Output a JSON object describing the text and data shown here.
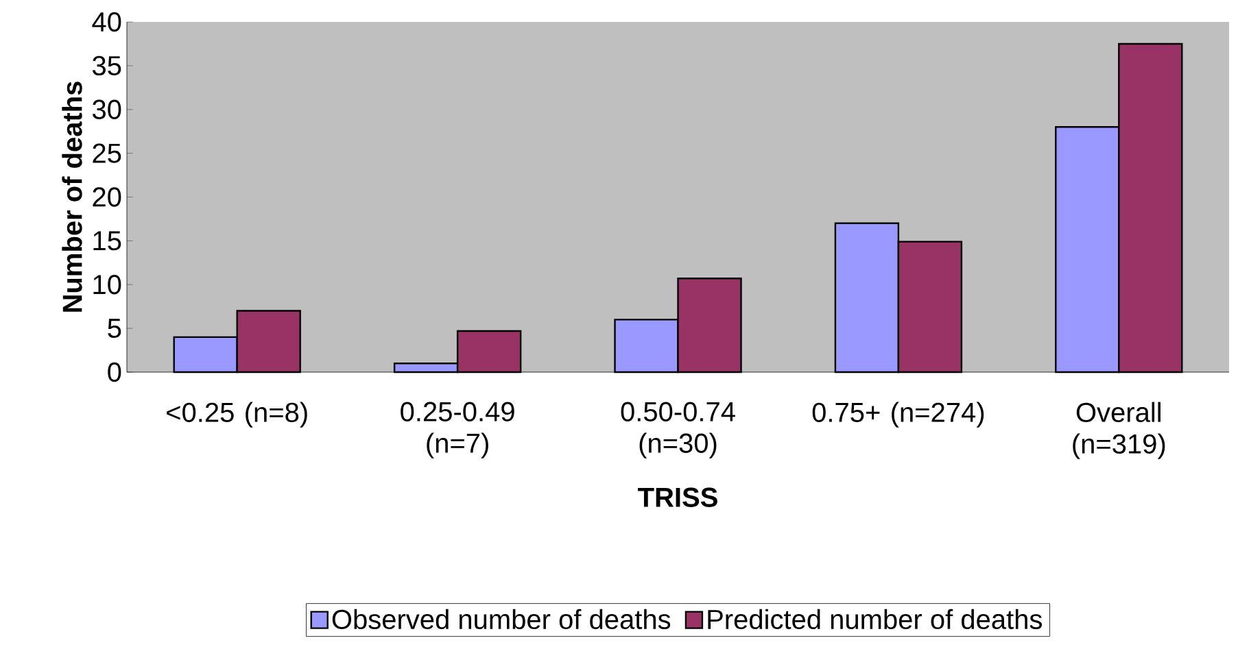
{
  "chart_data": {
    "type": "bar",
    "xlabel": "TRISS",
    "ylabel": "Number of deaths",
    "categories": [
      "<0.25 (n=8)",
      "0.25-0.49 (n=7)",
      "0.50-0.74 (n=30)",
      "0.75+ (n=274)",
      "Overall (n=319)"
    ],
    "series": [
      {
        "name": "Observed number of deaths",
        "color": "#9999ff",
        "values": [
          4,
          1,
          6,
          17,
          28
        ]
      },
      {
        "name": "Predicted number of deaths",
        "color": "#993366",
        "values": [
          7,
          4.7,
          10.7,
          14.9,
          37.5
        ]
      }
    ],
    "ylim": [
      0,
      40
    ],
    "yticks": [
      0,
      5,
      10,
      15,
      20,
      25,
      30,
      35,
      40
    ],
    "grid": false,
    "legend": "bottom"
  }
}
